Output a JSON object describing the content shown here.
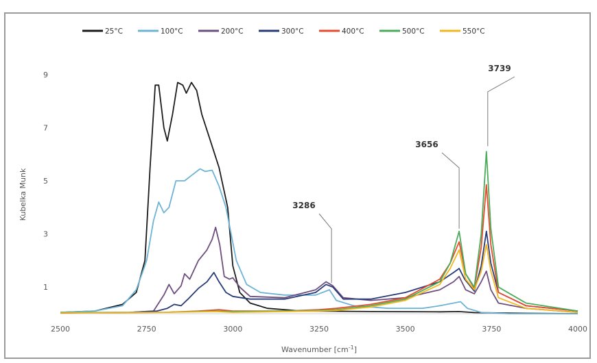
{
  "chart_data": {
    "type": "line",
    "title": "",
    "xlabel": "Wavenumber [cm",
    "xlabel_sup": "-1",
    "xlabel_tail": "]",
    "ylabel": "Kubelka Munk",
    "xlim": [
      2500,
      4000
    ],
    "ylim": [
      0,
      10
    ],
    "xticks": [
      "2500",
      "2750",
      "3000",
      "3250",
      "3500",
      "3750",
      "4000"
    ],
    "yticks": [
      "1",
      "3",
      "5",
      "7",
      "9"
    ],
    "grid": false,
    "legend_position": "top",
    "series": [
      {
        "name": "25°C",
        "color": "#1a1a1a",
        "points": [
          [
            2500,
            0.05
          ],
          [
            2600,
            0.1
          ],
          [
            2680,
            0.35
          ],
          [
            2720,
            0.8
          ],
          [
            2745,
            2.0
          ],
          [
            2760,
            5.5
          ],
          [
            2775,
            8.6
          ],
          [
            2785,
            8.6
          ],
          [
            2800,
            7.0
          ],
          [
            2810,
            6.5
          ],
          [
            2825,
            7.5
          ],
          [
            2840,
            8.7
          ],
          [
            2855,
            8.6
          ],
          [
            2865,
            8.3
          ],
          [
            2880,
            8.7
          ],
          [
            2895,
            8.4
          ],
          [
            2910,
            7.5
          ],
          [
            2935,
            6.5
          ],
          [
            2960,
            5.5
          ],
          [
            2985,
            4.0
          ],
          [
            3000,
            1.8
          ],
          [
            3020,
            0.8
          ],
          [
            3050,
            0.4
          ],
          [
            3100,
            0.2
          ],
          [
            3200,
            0.1
          ],
          [
            3400,
            0.08
          ],
          [
            3600,
            0.07
          ],
          [
            3655,
            0.08
          ],
          [
            3700,
            0.04
          ],
          [
            3800,
            0.02
          ],
          [
            4000,
            0.0
          ]
        ]
      },
      {
        "name": "100°C",
        "color": "#6cb3d6",
        "points": [
          [
            2500,
            0.05
          ],
          [
            2600,
            0.1
          ],
          [
            2680,
            0.3
          ],
          [
            2720,
            0.9
          ],
          [
            2750,
            2.0
          ],
          [
            2770,
            3.5
          ],
          [
            2785,
            4.2
          ],
          [
            2800,
            3.8
          ],
          [
            2815,
            4.0
          ],
          [
            2835,
            5.0
          ],
          [
            2860,
            5.0
          ],
          [
            2880,
            5.2
          ],
          [
            2905,
            5.45
          ],
          [
            2920,
            5.35
          ],
          [
            2940,
            5.4
          ],
          [
            2960,
            4.8
          ],
          [
            2980,
            4.0
          ],
          [
            2995,
            3.0
          ],
          [
            3010,
            2.0
          ],
          [
            3040,
            1.1
          ],
          [
            3080,
            0.8
          ],
          [
            3150,
            0.7
          ],
          [
            3240,
            0.7
          ],
          [
            3280,
            0.9
          ],
          [
            3300,
            0.5
          ],
          [
            3350,
            0.3
          ],
          [
            3450,
            0.2
          ],
          [
            3550,
            0.2
          ],
          [
            3600,
            0.3
          ],
          [
            3640,
            0.4
          ],
          [
            3660,
            0.45
          ],
          [
            3680,
            0.2
          ],
          [
            3720,
            0.05
          ],
          [
            3800,
            0.0
          ],
          [
            4000,
            0.0
          ]
        ]
      },
      {
        "name": "200°C",
        "color": "#6c4d7c",
        "points": [
          [
            2500,
            0.03
          ],
          [
            2700,
            0.05
          ],
          [
            2770,
            0.1
          ],
          [
            2800,
            0.7
          ],
          [
            2815,
            1.1
          ],
          [
            2830,
            0.75
          ],
          [
            2850,
            1.05
          ],
          [
            2860,
            1.5
          ],
          [
            2875,
            1.3
          ],
          [
            2900,
            2.0
          ],
          [
            2925,
            2.4
          ],
          [
            2940,
            2.8
          ],
          [
            2950,
            3.25
          ],
          [
            2962,
            2.6
          ],
          [
            2975,
            1.4
          ],
          [
            2990,
            1.3
          ],
          [
            3000,
            1.35
          ],
          [
            3020,
            1.0
          ],
          [
            3050,
            0.65
          ],
          [
            3150,
            0.6
          ],
          [
            3240,
            0.9
          ],
          [
            3270,
            1.2
          ],
          [
            3290,
            1.05
          ],
          [
            3320,
            0.6
          ],
          [
            3400,
            0.5
          ],
          [
            3500,
            0.6
          ],
          [
            3600,
            0.9
          ],
          [
            3640,
            1.2
          ],
          [
            3656,
            1.4
          ],
          [
            3675,
            0.9
          ],
          [
            3700,
            0.75
          ],
          [
            3720,
            1.2
          ],
          [
            3735,
            1.6
          ],
          [
            3748,
            0.9
          ],
          [
            3770,
            0.4
          ],
          [
            3850,
            0.2
          ],
          [
            4000,
            0.05
          ]
        ]
      },
      {
        "name": "300°C",
        "color": "#273a78",
        "points": [
          [
            2500,
            0.03
          ],
          [
            2700,
            0.05
          ],
          [
            2780,
            0.1
          ],
          [
            2810,
            0.2
          ],
          [
            2830,
            0.35
          ],
          [
            2850,
            0.3
          ],
          [
            2870,
            0.55
          ],
          [
            2900,
            0.95
          ],
          [
            2925,
            1.2
          ],
          [
            2945,
            1.55
          ],
          [
            2960,
            1.2
          ],
          [
            2980,
            0.8
          ],
          [
            3000,
            0.65
          ],
          [
            3050,
            0.55
          ],
          [
            3150,
            0.55
          ],
          [
            3240,
            0.8
          ],
          [
            3270,
            1.1
          ],
          [
            3290,
            1.0
          ],
          [
            3320,
            0.55
          ],
          [
            3400,
            0.55
          ],
          [
            3500,
            0.8
          ],
          [
            3600,
            1.2
          ],
          [
            3640,
            1.55
          ],
          [
            3656,
            1.7
          ],
          [
            3672,
            1.3
          ],
          [
            3700,
            0.85
          ],
          [
            3720,
            1.8
          ],
          [
            3735,
            3.1
          ],
          [
            3748,
            1.9
          ],
          [
            3770,
            0.8
          ],
          [
            3850,
            0.3
          ],
          [
            4000,
            0.1
          ]
        ]
      },
      {
        "name": "400°C",
        "color": "#e84a2c",
        "points": [
          [
            2500,
            0.03
          ],
          [
            2800,
            0.05
          ],
          [
            2900,
            0.1
          ],
          [
            2960,
            0.15
          ],
          [
            3000,
            0.1
          ],
          [
            3150,
            0.1
          ],
          [
            3250,
            0.15
          ],
          [
            3300,
            0.2
          ],
          [
            3400,
            0.35
          ],
          [
            3500,
            0.6
          ],
          [
            3600,
            1.3
          ],
          [
            3630,
            1.9
          ],
          [
            3656,
            2.7
          ],
          [
            3675,
            1.5
          ],
          [
            3700,
            0.95
          ],
          [
            3720,
            2.5
          ],
          [
            3735,
            4.85
          ],
          [
            3748,
            2.6
          ],
          [
            3770,
            0.8
          ],
          [
            3850,
            0.3
          ],
          [
            4000,
            0.1
          ]
        ]
      },
      {
        "name": "500°C",
        "color": "#4aab5a",
        "points": [
          [
            2500,
            0.05
          ],
          [
            2800,
            0.05
          ],
          [
            2950,
            0.1
          ],
          [
            3000,
            0.08
          ],
          [
            3150,
            0.1
          ],
          [
            3250,
            0.12
          ],
          [
            3300,
            0.15
          ],
          [
            3400,
            0.3
          ],
          [
            3500,
            0.55
          ],
          [
            3600,
            1.2
          ],
          [
            3630,
            1.9
          ],
          [
            3656,
            3.1
          ],
          [
            3675,
            1.5
          ],
          [
            3700,
            1.0
          ],
          [
            3720,
            3.0
          ],
          [
            3735,
            6.1
          ],
          [
            3748,
            3.2
          ],
          [
            3770,
            1.0
          ],
          [
            3850,
            0.4
          ],
          [
            4000,
            0.1
          ]
        ]
      },
      {
        "name": "550°C",
        "color": "#f2b71f",
        "points": [
          [
            2500,
            0.03
          ],
          [
            2800,
            0.05
          ],
          [
            2950,
            0.08
          ],
          [
            3000,
            0.05
          ],
          [
            3150,
            0.08
          ],
          [
            3250,
            0.1
          ],
          [
            3300,
            0.12
          ],
          [
            3400,
            0.25
          ],
          [
            3500,
            0.5
          ],
          [
            3600,
            1.1
          ],
          [
            3630,
            1.7
          ],
          [
            3656,
            2.4
          ],
          [
            3675,
            1.3
          ],
          [
            3700,
            0.9
          ],
          [
            3720,
            1.6
          ],
          [
            3735,
            2.6
          ],
          [
            3748,
            1.6
          ],
          [
            3770,
            0.6
          ],
          [
            3850,
            0.2
          ],
          [
            4000,
            0.05
          ]
        ]
      }
    ],
    "annotations": [
      {
        "label": "3286",
        "x": 3286,
        "y": 1.15
      },
      {
        "label": "3656",
        "x": 3656,
        "y": 3.2
      },
      {
        "label": "3739",
        "x": 3739,
        "y": 6.3
      }
    ]
  }
}
